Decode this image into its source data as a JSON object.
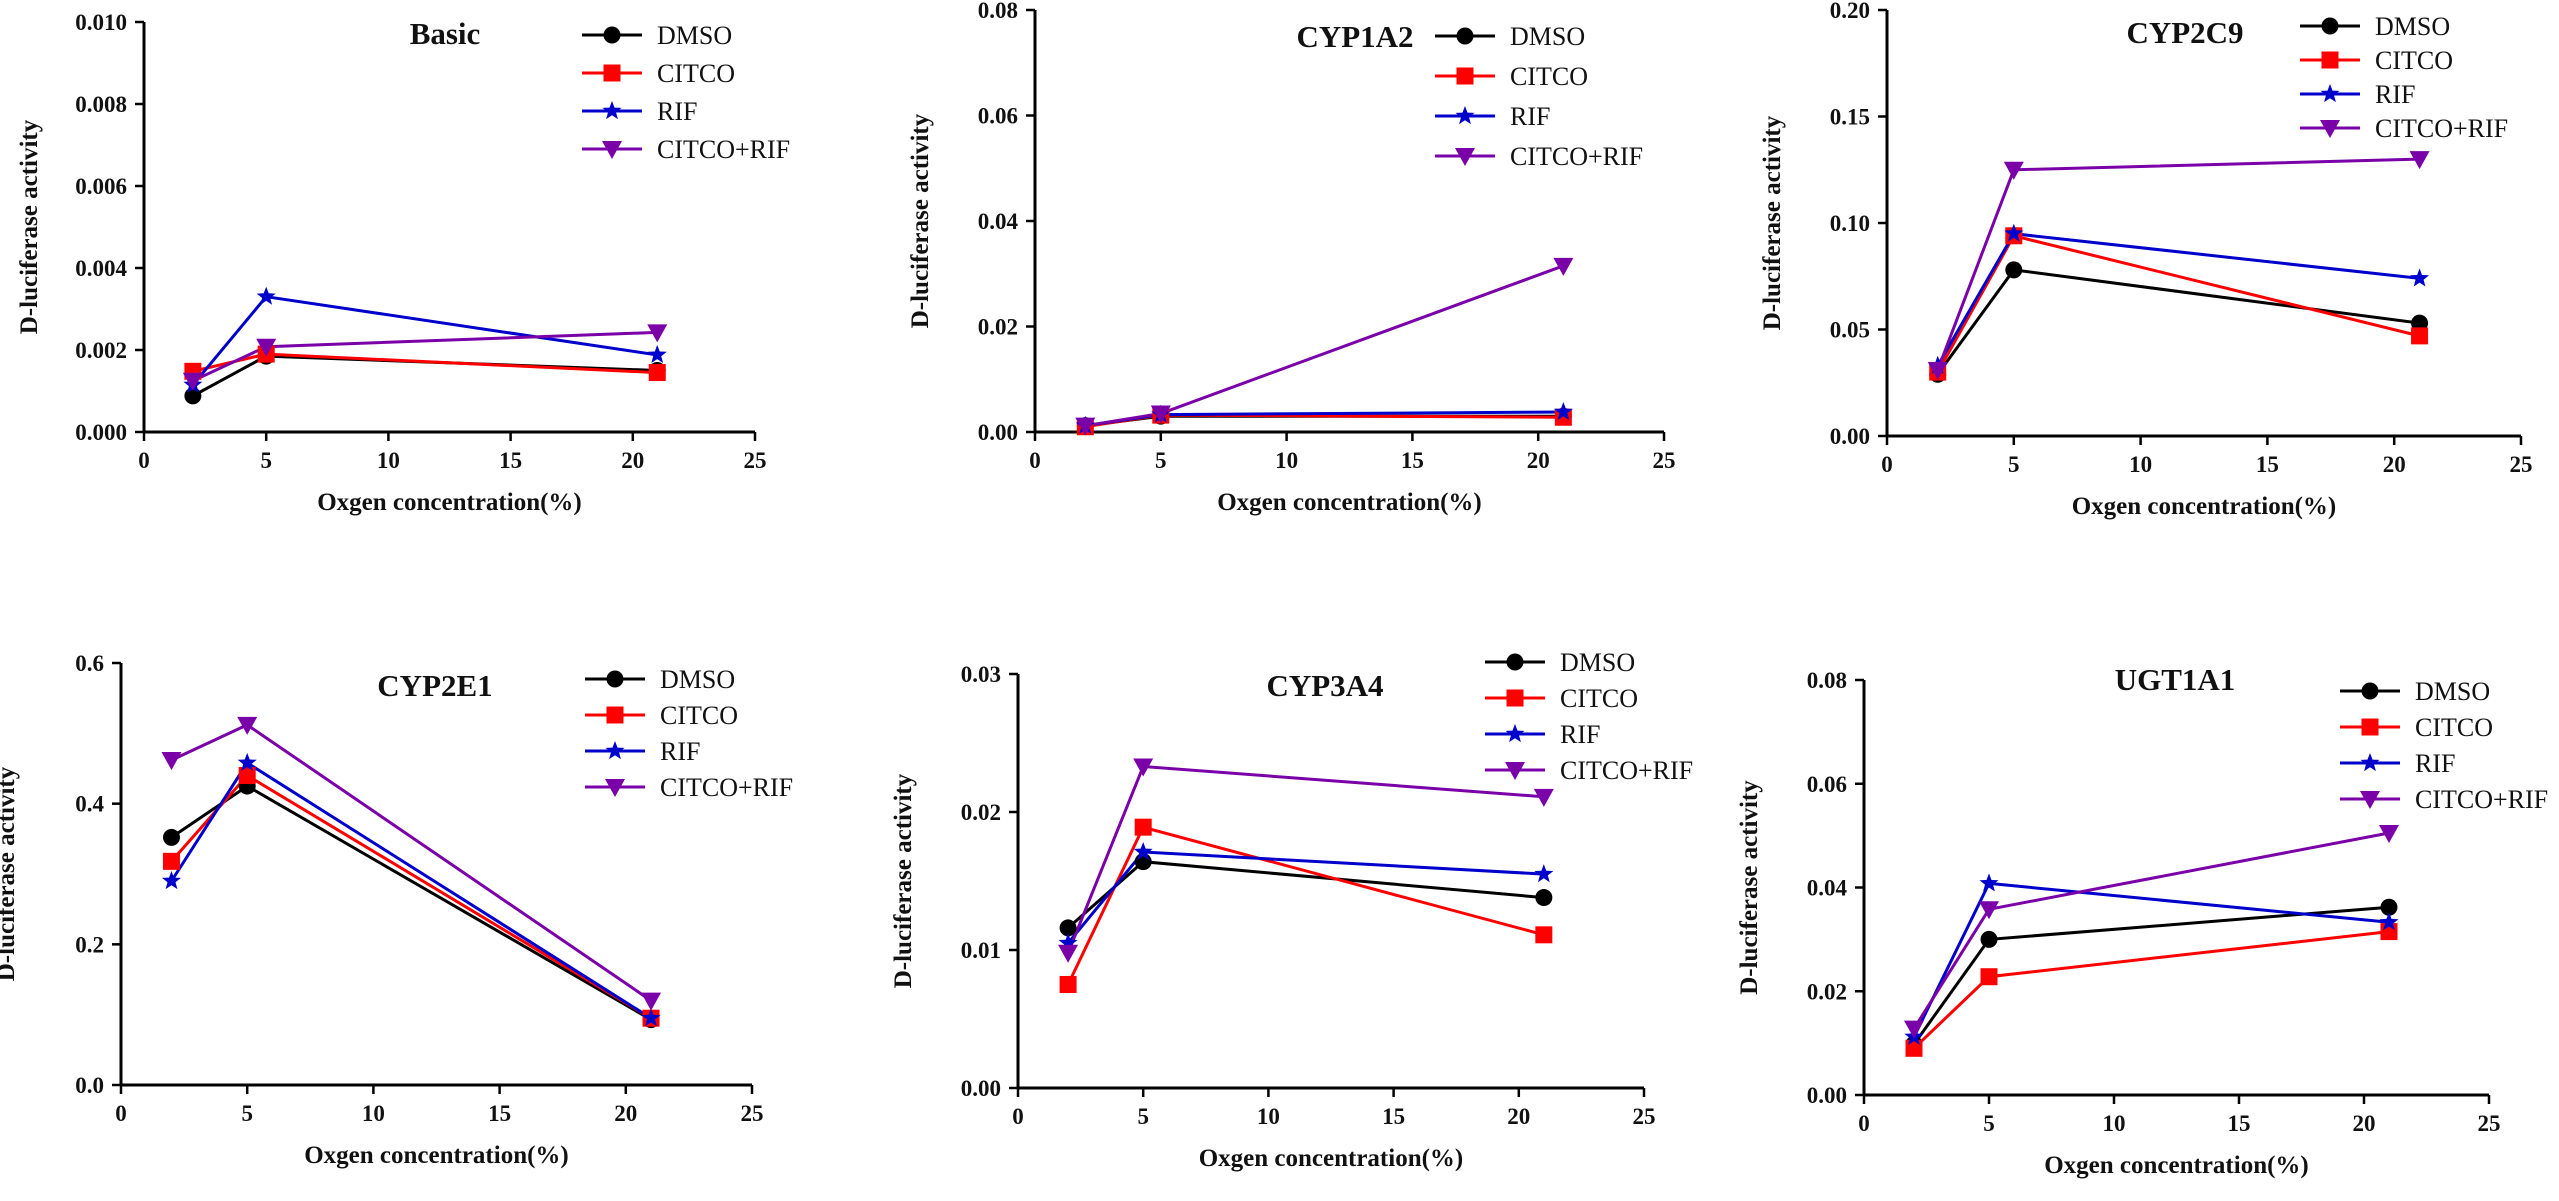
{
  "series_styles": [
    {
      "name": "DMSO",
      "color": "#000000",
      "marker": "circle"
    },
    {
      "name": "CITCO",
      "color": "#ff0000",
      "marker": "square"
    },
    {
      "name": "RIF",
      "color": "#0000cc",
      "marker": "star"
    },
    {
      "name": "CITCO+RIF",
      "color": "#7a00a8",
      "marker": "triangle-down"
    }
  ],
  "chart_data": [
    {
      "id": "basic",
      "type": "line",
      "title": "Basic",
      "xlabel": "Oxgen concentration(%)",
      "ylabel": "D-luciferase activity",
      "x": [
        2,
        5,
        21
      ],
      "xlim": [
        0,
        25
      ],
      "xticks": [
        "0",
        "5",
        "10",
        "15",
        "20",
        "25"
      ],
      "ylim": [
        0,
        0.01
      ],
      "yticks": [
        "0.000",
        "0.002",
        "0.004",
        "0.006",
        "0.008",
        "0.010"
      ],
      "series": [
        {
          "name": "DMSO",
          "values": [
            0.00088,
            0.00185,
            0.0015
          ]
        },
        {
          "name": "CITCO",
          "values": [
            0.00148,
            0.0019,
            0.00145
          ]
        },
        {
          "name": "RIF",
          "values": [
            0.00115,
            0.0033,
            0.00188
          ]
        },
        {
          "name": "CITCO+RIF",
          "values": [
            0.00125,
            0.00208,
            0.00243
          ]
        }
      ]
    },
    {
      "id": "cyp1a2",
      "type": "line",
      "title": "CYP1A2",
      "xlabel": "Oxgen concentration(%)",
      "ylabel": "D-luciferase activity",
      "x": [
        2,
        5,
        21
      ],
      "xlim": [
        0,
        25
      ],
      "xticks": [
        "0",
        "5",
        "10",
        "15",
        "20",
        "25"
      ],
      "ylim": [
        0,
        0.08
      ],
      "yticks": [
        "0.00",
        "0.02",
        "0.04",
        "0.06",
        "0.08"
      ],
      "series": [
        {
          "name": "DMSO",
          "values": [
            0.0012,
            0.003,
            0.003
          ]
        },
        {
          "name": "CITCO",
          "values": [
            0.001,
            0.0032,
            0.0028
          ]
        },
        {
          "name": "RIF",
          "values": [
            0.0012,
            0.0033,
            0.0038
          ]
        },
        {
          "name": "CITCO+RIF",
          "values": [
            0.0012,
            0.0035,
            0.0315
          ]
        }
      ]
    },
    {
      "id": "cyp2c9",
      "type": "line",
      "title": "CYP2C9",
      "xlabel": "Oxgen concentration(%)",
      "ylabel": "D-luciferase activity",
      "x": [
        2,
        5,
        21
      ],
      "xlim": [
        0,
        25
      ],
      "xticks": [
        "0",
        "5",
        "10",
        "15",
        "20",
        "25"
      ],
      "ylim": [
        0,
        0.2
      ],
      "yticks": [
        "0.00",
        "0.05",
        "0.10",
        "0.15",
        "0.20"
      ],
      "series": [
        {
          "name": "DMSO",
          "values": [
            0.029,
            0.078,
            0.053
          ]
        },
        {
          "name": "CITCO",
          "values": [
            0.03,
            0.094,
            0.047
          ]
        },
        {
          "name": "RIF",
          "values": [
            0.033,
            0.095,
            0.074
          ]
        },
        {
          "name": "CITCO+RIF",
          "values": [
            0.031,
            0.125,
            0.13
          ]
        }
      ]
    },
    {
      "id": "cyp2e1",
      "type": "line",
      "title": "CYP2E1",
      "xlabel": "Oxgen concentration(%)",
      "ylabel": "D-luciferase activity",
      "x": [
        2,
        5,
        21
      ],
      "xlim": [
        0,
        25
      ],
      "xticks": [
        "0",
        "5",
        "10",
        "15",
        "20",
        "25"
      ],
      "ylim": [
        0,
        0.6
      ],
      "yticks": [
        "0.0",
        "0.2",
        "0.4",
        "0.6"
      ],
      "series": [
        {
          "name": "DMSO",
          "values": [
            0.352,
            0.425,
            0.093
          ]
        },
        {
          "name": "CITCO",
          "values": [
            0.318,
            0.44,
            0.095
          ]
        },
        {
          "name": "RIF",
          "values": [
            0.29,
            0.458,
            0.095
          ]
        },
        {
          "name": "CITCO+RIF",
          "values": [
            0.462,
            0.512,
            0.12
          ]
        }
      ]
    },
    {
      "id": "cyp3a4",
      "type": "line",
      "title": "CYP3A4",
      "xlabel": "Oxgen concentration(%)",
      "ylabel": "D-luciferase activity",
      "x": [
        2,
        5,
        21
      ],
      "xlim": [
        0,
        25
      ],
      "xticks": [
        "0",
        "5",
        "10",
        "15",
        "20",
        "25"
      ],
      "ylim": [
        0,
        0.03
      ],
      "yticks": [
        "0.00",
        "0.01",
        "0.02",
        "0.03"
      ],
      "series": [
        {
          "name": "DMSO",
          "values": [
            0.0116,
            0.0164,
            0.0138
          ]
        },
        {
          "name": "CITCO",
          "values": [
            0.0075,
            0.0189,
            0.0111
          ]
        },
        {
          "name": "RIF",
          "values": [
            0.0105,
            0.0171,
            0.0155
          ]
        },
        {
          "name": "CITCO+RIF",
          "values": [
            0.0098,
            0.0233,
            0.0211
          ]
        }
      ]
    },
    {
      "id": "ugt1a1",
      "type": "line",
      "title": "UGT1A1",
      "xlabel": "Oxgen concentration(%)",
      "ylabel": "D-luciferase activity",
      "x": [
        2,
        5,
        21
      ],
      "xlim": [
        0,
        25
      ],
      "xticks": [
        "0",
        "5",
        "10",
        "15",
        "20",
        "25"
      ],
      "ylim": [
        0,
        0.08
      ],
      "yticks": [
        "0.00",
        "0.02",
        "0.04",
        "0.06",
        "0.08"
      ],
      "series": [
        {
          "name": "DMSO",
          "values": [
            0.0098,
            0.03,
            0.0362
          ]
        },
        {
          "name": "CITCO",
          "values": [
            0.009,
            0.0228,
            0.0315
          ]
        },
        {
          "name": "RIF",
          "values": [
            0.0112,
            0.0408,
            0.0333
          ]
        },
        {
          "name": "CITCO+RIF",
          "values": [
            0.0128,
            0.0358,
            0.0505
          ]
        }
      ]
    }
  ]
}
